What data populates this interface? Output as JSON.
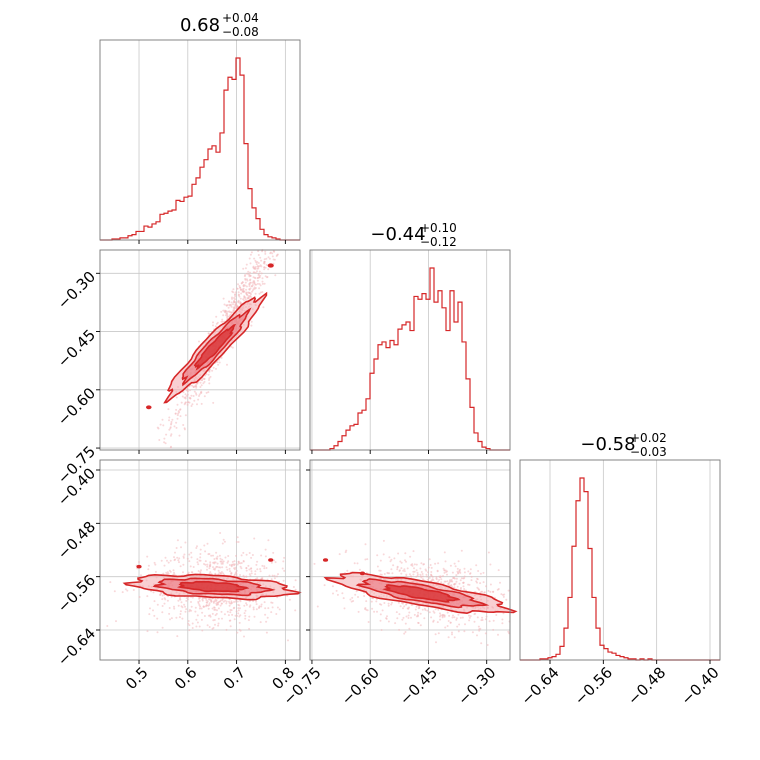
{
  "colors": {
    "accent": "#d62728",
    "fill_light": "#f4a9ad",
    "fill_mid": "#e96a72",
    "scatter": "#f2b8bb",
    "grid": "#c8c8c8",
    "frame": "#777777"
  },
  "chart_data": {
    "type": "corner",
    "parameters": [
      {
        "title_main": "0.68",
        "title_plus": "+0.04",
        "title_minus": "−0.08",
        "range": [
          0.42,
          0.83
        ],
        "ticks": [
          0.5,
          0.6,
          0.7,
          0.8
        ],
        "tick_labels": [
          "0.5",
          "0.6",
          "0.7",
          "0.8"
        ]
      },
      {
        "title_main": "−0.44",
        "title_plus": "+0.10",
        "title_minus": "−0.12",
        "range": [
          -0.755,
          -0.24
        ],
        "ticks": [
          -0.75,
          -0.6,
          -0.45,
          -0.3
        ],
        "tick_labels": [
          "−0.75",
          "−0.60",
          "−0.45",
          "−0.30"
        ]
      },
      {
        "title_main": "−0.58",
        "title_plus": "+0.02",
        "title_minus": "−0.03",
        "range": [
          -0.685,
          -0.385
        ],
        "ticks": [
          -0.64,
          -0.56,
          -0.48,
          -0.4
        ],
        "tick_labels": [
          "−0.64",
          "−0.56",
          "−0.48",
          "−0.40"
        ]
      }
    ],
    "histograms": [
      {
        "param": 0,
        "edges_start": 0.42,
        "bin_width": 0.0082,
        "counts": [
          0,
          0,
          0,
          1,
          1,
          2,
          2,
          4,
          5,
          8,
          8,
          13,
          12,
          15,
          17,
          24,
          25,
          27,
          28,
          37,
          36,
          40,
          41,
          52,
          58,
          68,
          75,
          85,
          88,
          82,
          100,
          140,
          152,
          150,
          170,
          154,
          90,
          48,
          30,
          20,
          10,
          5,
          3,
          2,
          1,
          0,
          0,
          0,
          0,
          0
        ]
      },
      {
        "param": 1,
        "edges_start": -0.755,
        "bin_width": 0.0103,
        "counts": [
          0,
          0,
          0,
          0,
          0,
          1,
          3,
          6,
          10,
          14,
          17,
          18,
          26,
          28,
          36,
          54,
          64,
          74,
          76,
          72,
          77,
          74,
          85,
          88,
          90,
          84,
          108,
          106,
          110,
          106,
          128,
          104,
          112,
          100,
          84,
          112,
          90,
          104,
          76,
          50,
          30,
          12,
          6,
          2,
          1,
          0,
          0,
          0,
          0,
          0
        ]
      },
      {
        "param": 2,
        "edges_start": -0.685,
        "bin_width": 0.006,
        "counts": [
          0,
          0,
          0,
          0,
          0,
          1,
          1,
          2,
          3,
          5,
          12,
          28,
          55,
          100,
          140,
          160,
          148,
          98,
          55,
          28,
          13,
          10,
          7,
          6,
          4,
          3,
          2,
          1,
          1,
          0,
          1,
          0,
          1,
          0,
          0,
          0,
          0,
          0,
          0,
          0,
          0,
          0,
          0,
          0,
          0,
          0,
          0,
          0,
          0,
          0
        ]
      }
    ],
    "pairs": [
      {
        "x_param": 0,
        "y_param": 1,
        "correlation": "strong positive"
      },
      {
        "x_param": 0,
        "y_param": 2,
        "correlation": "none"
      },
      {
        "x_param": 1,
        "y_param": 2,
        "correlation": "weak negative"
      }
    ],
    "grid": true
  }
}
